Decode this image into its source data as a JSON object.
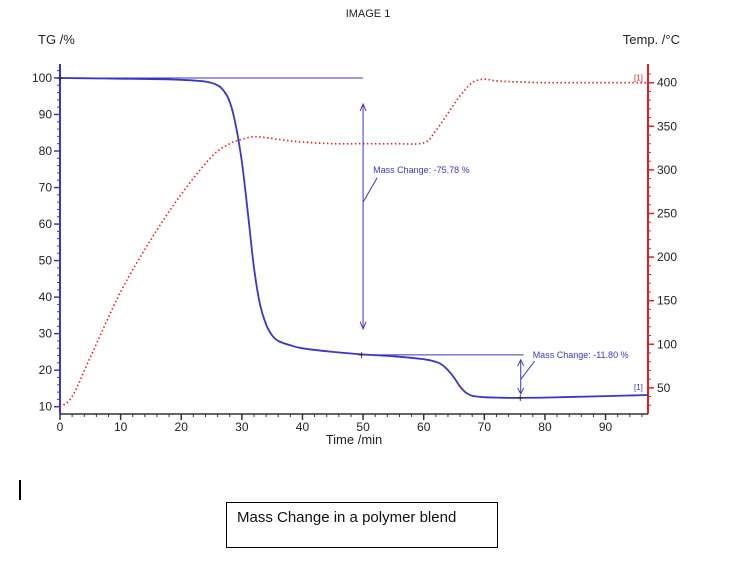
{
  "header": {
    "title": "IMAGE 1"
  },
  "caption": "Mass Change in a polymer blend",
  "chart_data": {
    "type": "line",
    "xlabel": "Time /min",
    "ylabel_left": "TG /%",
    "ylabel_right": "Temp. /°C",
    "xlim": [
      0,
      97
    ],
    "ylim_left": [
      8,
      103
    ],
    "ylim_right": [
      20,
      418
    ],
    "xticks": [
      0,
      10,
      20,
      30,
      40,
      50,
      60,
      70,
      80,
      90
    ],
    "yticks_left": [
      10,
      20,
      30,
      40,
      50,
      60,
      70,
      80,
      90,
      100
    ],
    "yticks_right": [
      50,
      100,
      150,
      200,
      250,
      300,
      350,
      400
    ],
    "colors": {
      "tg": "#3b35c9",
      "temp": "#e02020",
      "axis_left": "#3b35c9",
      "axis_right": "#e02020"
    },
    "series": [
      {
        "name": "",
        "axis": "left",
        "style": "solid",
        "x": [
          0,
          5,
          10,
          15,
          20,
          24,
          26,
          27,
          28,
          29,
          30,
          31,
          32,
          33,
          34,
          35,
          36,
          38,
          40,
          45,
          50,
          55,
          60,
          62,
          63,
          64,
          65,
          66,
          67,
          68,
          70,
          72,
          75,
          80,
          85,
          90,
          97
        ],
        "y": [
          100,
          99.9,
          99.8,
          99.7,
          99.5,
          99.0,
          98.0,
          96.5,
          93.5,
          87,
          77,
          63,
          48,
          38,
          32.5,
          29.5,
          28,
          26.8,
          26,
          25,
          24.3,
          23.8,
          23,
          22.3,
          21.5,
          20,
          18,
          15.5,
          13.8,
          13,
          12.6,
          12.5,
          12.4,
          12.5,
          12.7,
          12.9,
          13.2
        ]
      },
      {
        "name": "",
        "axis": "right",
        "style": "dotted",
        "x": [
          0,
          2,
          5,
          10,
          15,
          20,
          25,
          28,
          30,
          32,
          34,
          37,
          40,
          45,
          50,
          55,
          60,
          62,
          64,
          66,
          68,
          70,
          72,
          75,
          80,
          85,
          90,
          97
        ],
        "y": [
          28,
          40,
          85,
          160,
          220,
          272,
          315,
          330,
          335,
          338,
          337,
          334,
          332,
          330,
          330,
          330,
          331,
          345,
          365,
          385,
          400,
          404,
          402,
          401,
          400,
          400,
          400,
          400
        ]
      }
    ],
    "annotations": [
      {
        "text": "Mass Change: -75.78 %",
        "x": 50,
        "y_from": 100,
        "y_to": 24.2
      },
      {
        "text": "Mass Change: -11.80 %",
        "x": 76,
        "y_from": 24.2,
        "y_to": 12.4
      }
    ],
    "end_markers": [
      "[1]",
      "[1]"
    ]
  }
}
